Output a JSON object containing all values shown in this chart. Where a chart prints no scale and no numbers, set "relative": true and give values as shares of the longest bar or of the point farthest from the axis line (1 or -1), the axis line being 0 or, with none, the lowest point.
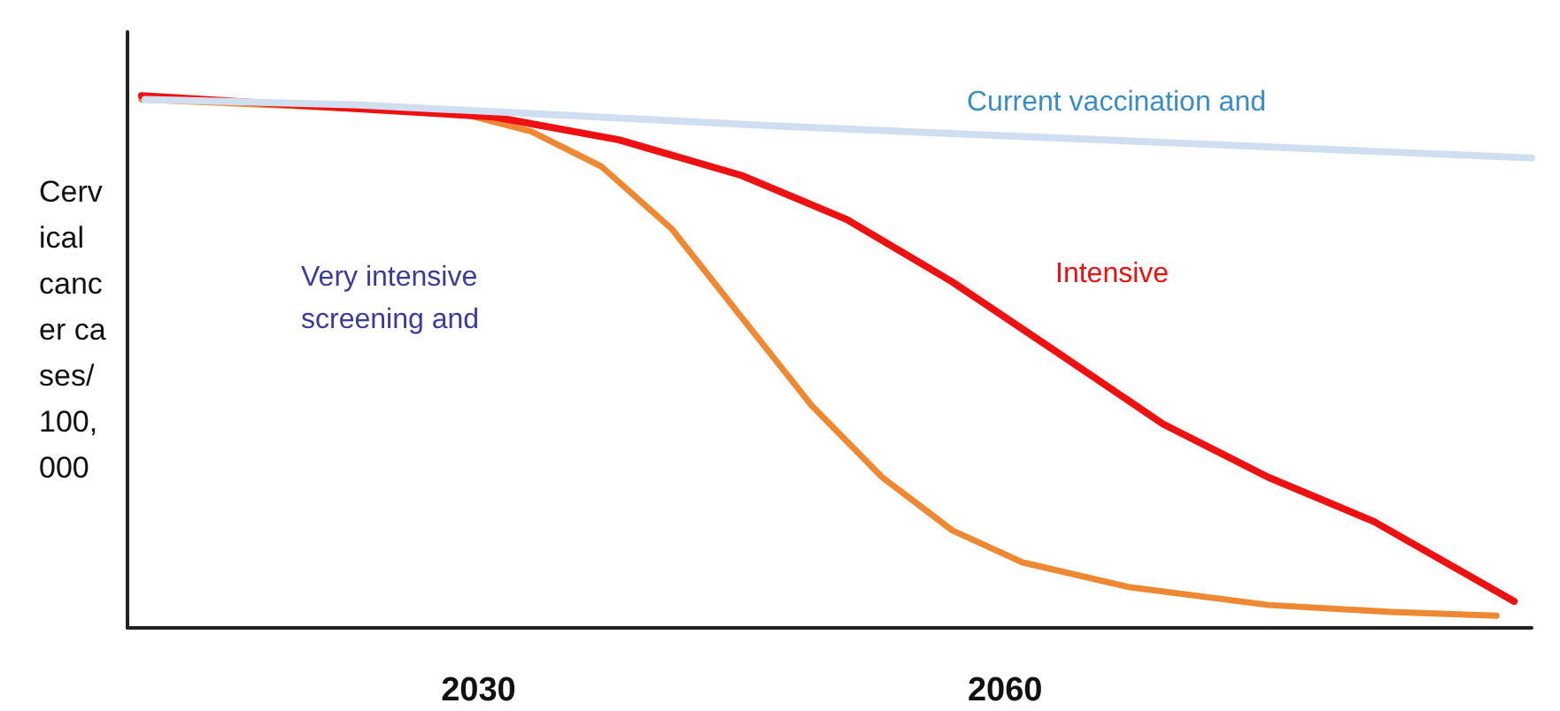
{
  "chart_data": {
    "type": "line",
    "ylabel": "Cervical cancer cases/100,000",
    "relative": true,
    "xlim": [
      2010,
      2090
    ],
    "xticks": [
      2030,
      2060
    ],
    "grid": false,
    "legend": false,
    "marker": "none",
    "annotations": [
      "Very intensive screening and"
    ],
    "series": [
      {
        "name": "Current vaccination and",
        "color": "#cfdff1",
        "x": [
          2011,
          2023,
          2047,
          2090
        ],
        "values": [
          0.993,
          0.983,
          0.943,
          0.883
        ]
      },
      {
        "name": "Intensive",
        "color": "#ee1111",
        "x": [
          2010.8,
          2030.9,
          2038,
          2045,
          2051,
          2057,
          2063,
          2069,
          2075,
          2081,
          2089
        ],
        "values": [
          1.0,
          0.96,
          0.917,
          0.85,
          0.767,
          0.65,
          0.517,
          0.383,
          0.283,
          0.2,
          0.05
        ]
      },
      {
        "color": "#ee8833",
        "x": [
          2010.8,
          2029,
          2033,
          2037,
          2041,
          2045,
          2049,
          2053,
          2057,
          2061,
          2067,
          2075,
          2082,
          2088
        ],
        "values": [
          0.993,
          0.967,
          0.933,
          0.867,
          0.75,
          0.583,
          0.417,
          0.283,
          0.183,
          0.123,
          0.077,
          0.043,
          0.03,
          0.023
        ]
      }
    ]
  }
}
